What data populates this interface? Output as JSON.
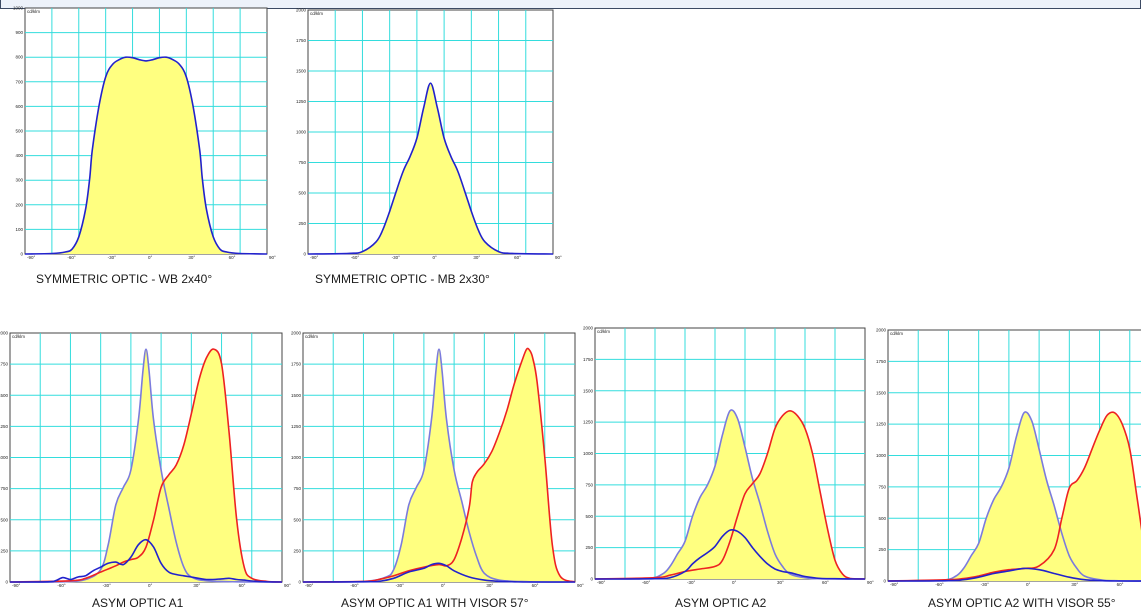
{
  "chart_data": [
    {
      "type": "area",
      "caption": "SYMMETRIC OPTIC - WB 2x40°",
      "unit": "cd/klm",
      "ylim": [
        0,
        1000
      ],
      "yticks": [
        "0",
        "100",
        "200",
        "300",
        "400",
        "500",
        "600",
        "700",
        "800",
        "900",
        "1000"
      ],
      "xlim": [
        -90,
        90
      ],
      "xticks": [
        "-90°",
        "-60°",
        "-30°",
        "0°",
        "30°",
        "60°",
        "90°"
      ],
      "colors": {
        "fill": "#ffff80",
        "grid": "#33dddd",
        "curve": "#2222cc"
      },
      "series": [
        {
          "color": "#2222cc",
          "filled": true,
          "x": [
            -90,
            -70,
            -60,
            -55,
            -50,
            -45,
            -42,
            -40,
            -35,
            -30,
            -25,
            -20,
            -15,
            -10,
            -5,
            0,
            5,
            10,
            15,
            20,
            25,
            30,
            35,
            40,
            42,
            45,
            50,
            55,
            60,
            70,
            90
          ],
          "y": [
            0,
            2,
            8,
            20,
            70,
            180,
            300,
            420,
            600,
            720,
            770,
            790,
            800,
            798,
            790,
            785,
            790,
            798,
            800,
            790,
            770,
            720,
            600,
            420,
            300,
            180,
            70,
            20,
            8,
            2,
            0
          ]
        }
      ]
    },
    {
      "type": "area",
      "caption": "SYMMETRIC OPTIC - MB 2x30°",
      "unit": "cd/klm",
      "ylim": [
        0,
        2000
      ],
      "yticks": [
        "0",
        "250",
        "500",
        "750",
        "1000",
        "1250",
        "1500",
        "1750",
        "2000"
      ],
      "xlim": [
        -90,
        90
      ],
      "xticks": [
        "-90°",
        "-60°",
        "-30°",
        "0°",
        "30°",
        "60°",
        "90°"
      ],
      "colors": {
        "fill": "#ffff80",
        "grid": "#33dddd",
        "curve": "#2222cc"
      },
      "series": [
        {
          "color": "#2222cc",
          "filled": true,
          "x": [
            -90,
            -60,
            -50,
            -40,
            -35,
            -30,
            -25,
            -20,
            -15,
            -10,
            -5,
            0,
            5,
            10,
            15,
            20,
            25,
            30,
            35,
            40,
            50,
            60,
            90
          ],
          "y": [
            0,
            5,
            20,
            100,
            200,
            350,
            520,
            680,
            800,
            950,
            1200,
            1400,
            1200,
            950,
            800,
            680,
            520,
            350,
            200,
            100,
            20,
            5,
            0
          ]
        }
      ]
    },
    {
      "type": "area",
      "caption": "ASYM OPTIC A1",
      "unit": "cd/klm",
      "ylim": [
        0,
        2000
      ],
      "yticks": [
        "0",
        "250",
        "500",
        "750",
        "1000",
        "1250",
        "1500",
        "1750",
        "2000"
      ],
      "xlim": [
        -90,
        90
      ],
      "xticks": [
        "-90°",
        "-60°",
        "-30°",
        "0°",
        "30°",
        "60°",
        "90°"
      ],
      "colors": {
        "fill": "#ffff80",
        "grid": "#33dddd"
      },
      "series": [
        {
          "color": "#7b7bdd",
          "filled": true,
          "x": [
            -90,
            -55,
            -40,
            -30,
            -25,
            -20,
            -15,
            -10,
            -5,
            -2,
            0,
            2,
            5,
            10,
            15,
            20,
            25,
            30,
            40,
            60,
            90
          ],
          "y": [
            0,
            2,
            20,
            100,
            300,
            620,
            760,
            900,
            1300,
            1700,
            1870,
            1700,
            1300,
            900,
            600,
            320,
            120,
            40,
            10,
            2,
            0
          ]
        },
        {
          "color": "#ee2222",
          "filled": true,
          "x": [
            -90,
            -50,
            -40,
            -30,
            -20,
            -15,
            -10,
            -5,
            0,
            5,
            10,
            15,
            20,
            25,
            30,
            35,
            40,
            45,
            50,
            55,
            60,
            65,
            70,
            80,
            90
          ],
          "y": [
            0,
            10,
            30,
            80,
            130,
            160,
            180,
            200,
            280,
            500,
            760,
            860,
            940,
            1100,
            1350,
            1620,
            1800,
            1870,
            1750,
            1200,
            500,
            120,
            30,
            5,
            0
          ]
        },
        {
          "color": "#2222cc",
          "filled": false,
          "x": [
            -90,
            -65,
            -60,
            -55,
            -50,
            -45,
            -40,
            -35,
            -30,
            -25,
            -20,
            -15,
            -10,
            -5,
            0,
            5,
            10,
            15,
            20,
            25,
            30,
            40,
            50,
            55,
            60,
            65,
            70,
            80,
            90
          ],
          "y": [
            0,
            2,
            10,
            35,
            20,
            40,
            50,
            90,
            120,
            150,
            160,
            140,
            200,
            300,
            340,
            280,
            150,
            80,
            60,
            50,
            40,
            20,
            25,
            30,
            20,
            15,
            8,
            2,
            0
          ]
        }
      ]
    },
    {
      "type": "area",
      "caption": "ASYM OPTIC A1 WITH VISOR 57°",
      "unit": "cd/klm",
      "ylim": [
        0,
        2000
      ],
      "yticks": [
        "0",
        "250",
        "500",
        "750",
        "1000",
        "1250",
        "1500",
        "1750",
        "2000"
      ],
      "xlim": [
        -90,
        90
      ],
      "xticks": [
        "-90°",
        "-60°",
        "-30°",
        "0°",
        "30°",
        "60°",
        "90°"
      ],
      "colors": {
        "fill": "#ffff80",
        "grid": "#33dddd"
      },
      "series": [
        {
          "color": "#7b7bdd",
          "filled": true,
          "x": [
            -90,
            -50,
            -35,
            -30,
            -25,
            -20,
            -15,
            -10,
            -5,
            -2,
            0,
            2,
            5,
            10,
            15,
            20,
            25,
            30,
            40,
            60,
            90
          ],
          "y": [
            0,
            5,
            40,
            100,
            300,
            620,
            760,
            900,
            1300,
            1700,
            1870,
            1700,
            1300,
            900,
            650,
            400,
            200,
            70,
            15,
            2,
            0
          ]
        },
        {
          "color": "#ee2222",
          "filled": true,
          "x": [
            -90,
            -50,
            -40,
            -30,
            -20,
            -10,
            0,
            5,
            10,
            15,
            20,
            22,
            25,
            30,
            35,
            40,
            45,
            50,
            55,
            58,
            60,
            62,
            65,
            70,
            75,
            80,
            90
          ],
          "y": [
            0,
            5,
            20,
            50,
            90,
            120,
            140,
            130,
            180,
            350,
            600,
            800,
            880,
            950,
            1050,
            1200,
            1380,
            1600,
            1780,
            1870,
            1860,
            1800,
            1600,
            1000,
            300,
            50,
            0
          ]
        },
        {
          "color": "#2222cc",
          "filled": false,
          "x": [
            -90,
            -50,
            -40,
            -30,
            -20,
            -10,
            -5,
            0,
            5,
            10,
            20,
            30,
            40,
            50,
            60,
            90
          ],
          "y": [
            0,
            2,
            5,
            30,
            80,
            110,
            140,
            150,
            130,
            90,
            40,
            15,
            5,
            2,
            0,
            0
          ]
        }
      ]
    },
    {
      "type": "area",
      "caption": "ASYM OPTIC A2",
      "unit": "cd/klm",
      "ylim": [
        0,
        2000
      ],
      "yticks": [
        "0",
        "250",
        "500",
        "750",
        "1000",
        "1250",
        "1500",
        "1750",
        "2000"
      ],
      "xlim": [
        -90,
        90
      ],
      "xticks": [
        "-90°",
        "-60°",
        "-30°",
        "0°",
        "30°",
        "60°",
        "90°"
      ],
      "colors": {
        "fill": "#ffff80",
        "grid": "#33dddd"
      },
      "series": [
        {
          "color": "#7b7bdd",
          "filled": true,
          "x": [
            -90,
            -55,
            -45,
            -40,
            -35,
            -30,
            -25,
            -20,
            -15,
            -10,
            -5,
            0,
            5,
            10,
            15,
            20,
            25,
            30,
            35,
            40,
            50,
            60,
            90
          ],
          "y": [
            0,
            5,
            40,
            100,
            200,
            300,
            500,
            650,
            750,
            900,
            1150,
            1340,
            1280,
            1050,
            800,
            600,
            380,
            200,
            100,
            40,
            10,
            2,
            0
          ]
        },
        {
          "color": "#ee2222",
          "filled": true,
          "x": [
            -90,
            -50,
            -40,
            -30,
            -20,
            -10,
            -5,
            0,
            5,
            10,
            15,
            20,
            25,
            30,
            35,
            40,
            45,
            50,
            55,
            60,
            65,
            70,
            75,
            80,
            90
          ],
          "y": [
            0,
            10,
            30,
            60,
            80,
            100,
            150,
            300,
            500,
            680,
            760,
            840,
            1000,
            1200,
            1300,
            1340,
            1300,
            1200,
            1000,
            700,
            400,
            150,
            40,
            5,
            0
          ]
        },
        {
          "color": "#2222cc",
          "filled": false,
          "x": [
            -90,
            -50,
            -40,
            -30,
            -25,
            -20,
            -15,
            -10,
            -5,
            0,
            5,
            10,
            15,
            20,
            25,
            30,
            35,
            40,
            45,
            50,
            60,
            70,
            90
          ],
          "y": [
            0,
            2,
            10,
            60,
            120,
            170,
            210,
            260,
            340,
            390,
            380,
            330,
            250,
            180,
            120,
            80,
            60,
            50,
            35,
            20,
            5,
            2,
            0
          ]
        }
      ]
    },
    {
      "type": "area",
      "caption": "ASYM OPTIC A2 WITH VISOR 55°",
      "unit": "cd/klm",
      "ylim": [
        0,
        2000
      ],
      "yticks": [
        "0",
        "250",
        "500",
        "750",
        "1000",
        "1250",
        "1500",
        "1750",
        "2000"
      ],
      "xlim": [
        -90,
        90
      ],
      "xticks": [
        "-90°",
        "-60°",
        "-30°",
        "0°",
        "30°",
        "60°"
      ],
      "colors": {
        "fill": "#ffff80",
        "grid": "#33dddd"
      },
      "series": [
        {
          "color": "#7b7bdd",
          "filled": true,
          "x": [
            -90,
            -55,
            -45,
            -40,
            -35,
            -30,
            -25,
            -20,
            -15,
            -10,
            -5,
            0,
            5,
            10,
            15,
            20,
            25,
            30,
            35,
            40,
            50,
            60,
            90
          ],
          "y": [
            0,
            5,
            40,
            100,
            200,
            300,
            500,
            650,
            750,
            900,
            1150,
            1340,
            1280,
            1050,
            800,
            600,
            380,
            200,
            100,
            40,
            10,
            2,
            0
          ]
        },
        {
          "color": "#ee2222",
          "filled": true,
          "x": [
            -90,
            -50,
            -40,
            -30,
            -20,
            -10,
            0,
            10,
            20,
            25,
            30,
            35,
            40,
            45,
            50,
            55,
            60,
            65,
            70,
            75,
            80,
            85
          ],
          "y": [
            0,
            10,
            20,
            40,
            70,
            90,
            100,
            120,
            250,
            500,
            740,
            800,
            900,
            1050,
            1200,
            1320,
            1340,
            1250,
            1050,
            650,
            250,
            40
          ]
        },
        {
          "color": "#2222cc",
          "filled": false,
          "x": [
            -90,
            -50,
            -40,
            -30,
            -20,
            -10,
            0,
            10,
            20,
            30,
            40,
            50,
            60,
            90
          ],
          "y": [
            0,
            2,
            10,
            30,
            60,
            80,
            100,
            90,
            60,
            30,
            10,
            3,
            0,
            0
          ]
        }
      ]
    }
  ]
}
